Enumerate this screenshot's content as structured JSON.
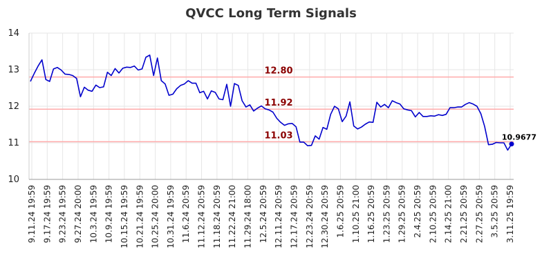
{
  "chart_data": {
    "type": "line",
    "title": "QVCC Long Term Signals",
    "xlabel": "",
    "ylabel": "",
    "ylim": [
      10,
      14
    ],
    "yticks": [
      10,
      11,
      12,
      13,
      14
    ],
    "grid": true,
    "x_tick_labels": [
      "9.11.24 19:59",
      "9.17.24 19:59",
      "9.23.24 19:59",
      "9.27.24 20:00",
      "10.3.24 19:59",
      "10.9.24 19:59",
      "10.15.24 19:59",
      "10.21.24 19:59",
      "10.25.24 20:00",
      "10.31.24 19:59",
      "11.6.24 20:59",
      "11.12.24 20:59",
      "11.18.24 20:59",
      "11.22.24 21:00",
      "11.29.24 18:00",
      "12.5.24 20:59",
      "12.11.24 20:59",
      "12.17.24 20:59",
      "12.23.24 20:59",
      "12.30.24 20:59",
      "1.6.25 20:59",
      "1.10.25 21:00",
      "1.16.25 20:59",
      "1.23.25 20:59",
      "1.29.25 20:59",
      "2.4.25 20:59",
      "2.10.25 20:59",
      "2.14.25 21:00",
      "2.21.25 20:59",
      "2.27.25 20:59",
      "3.5.25 20:59",
      "3.11.25 19:59"
    ],
    "series": [
      {
        "color": "#0000cc",
        "values": [
          12.68,
          12.9,
          13.1,
          13.27,
          12.73,
          12.68,
          13.02,
          13.06,
          12.99,
          12.88,
          12.87,
          12.84,
          12.76,
          12.26,
          12.52,
          12.44,
          12.41,
          12.58,
          12.51,
          12.53,
          12.93,
          12.84,
          13.03,
          12.91,
          13.04,
          13.07,
          13.06,
          13.1,
          12.99,
          13.02,
          13.34,
          13.4,
          12.84,
          13.32,
          12.7,
          12.61,
          12.3,
          12.33,
          12.48,
          12.57,
          12.61,
          12.7,
          12.63,
          12.63,
          12.37,
          12.41,
          12.2,
          12.42,
          12.38,
          12.2,
          12.18,
          12.6,
          12.0,
          12.62,
          12.57,
          12.15,
          11.98,
          12.04,
          11.87,
          11.95,
          12.01,
          11.93,
          11.9,
          11.84,
          11.67,
          11.56,
          11.48,
          11.52,
          11.53,
          11.44,
          11.02,
          11.02,
          10.92,
          10.93,
          11.19,
          11.1,
          11.42,
          11.37,
          11.78,
          12.0,
          11.93,
          11.58,
          11.73,
          12.12,
          11.46,
          11.38,
          11.43,
          11.51,
          11.57,
          11.56,
          12.11,
          11.98,
          12.05,
          11.96,
          12.15,
          12.1,
          12.06,
          11.93,
          11.9,
          11.88,
          11.71,
          11.83,
          11.72,
          11.72,
          11.74,
          11.73,
          11.77,
          11.75,
          11.78,
          11.96,
          11.96,
          11.98,
          11.98,
          12.05,
          12.1,
          12.06,
          12.0,
          11.8,
          11.45,
          10.95,
          10.96,
          11.01,
          11.0,
          11.0,
          10.8,
          10.9677
        ]
      }
    ],
    "levels": [
      {
        "value": 12.8,
        "label": "12.80"
      },
      {
        "value": 11.92,
        "label": "11.92"
      },
      {
        "value": 11.03,
        "label": "11.03"
      }
    ],
    "level_line_color": "#ffaaaa",
    "level_label_color": "#8b0000",
    "last_value": {
      "value": 10.9677,
      "label": "10.9677"
    }
  }
}
